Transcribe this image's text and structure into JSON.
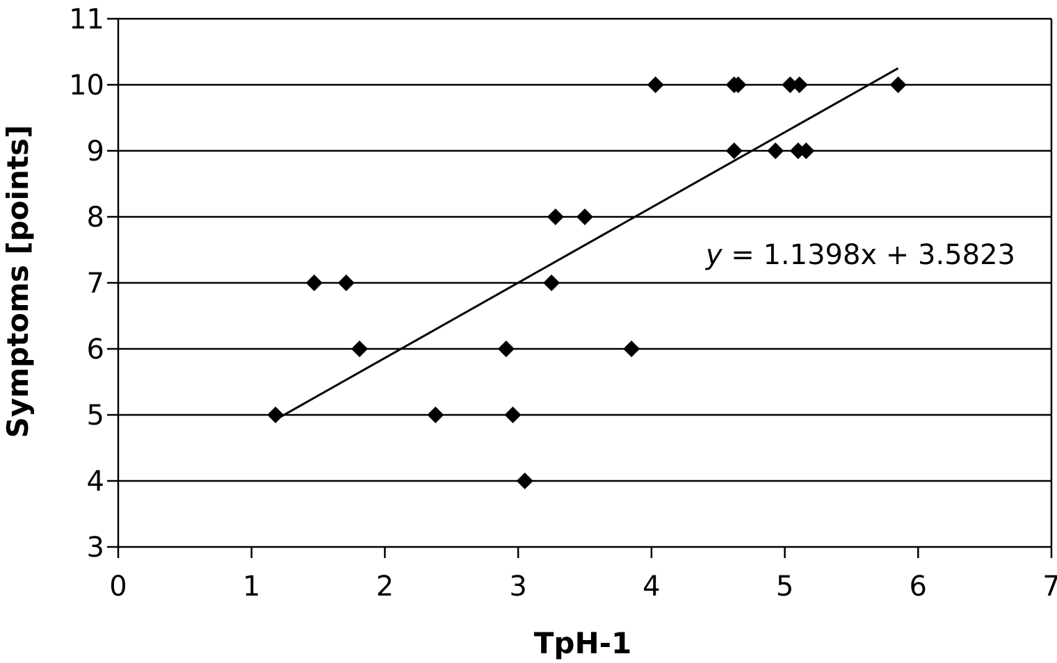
{
  "chart_data": {
    "type": "scatter",
    "xlabel": "TpH-1",
    "ylabel": "Symptoms [points]",
    "xlim": [
      0,
      7
    ],
    "ylim": [
      3,
      11
    ],
    "x_ticks": [
      "0",
      "1",
      "2",
      "3",
      "4",
      "5",
      "6",
      "7"
    ],
    "y_ticks": [
      "3",
      "4",
      "5",
      "6",
      "7",
      "8",
      "9",
      "10",
      "11"
    ],
    "grid": "horizontal",
    "points": [
      {
        "x": 1.18,
        "y": 5
      },
      {
        "x": 1.47,
        "y": 7
      },
      {
        "x": 1.71,
        "y": 7
      },
      {
        "x": 1.81,
        "y": 6
      },
      {
        "x": 2.38,
        "y": 5
      },
      {
        "x": 2.91,
        "y": 6
      },
      {
        "x": 2.96,
        "y": 5
      },
      {
        "x": 3.05,
        "y": 4
      },
      {
        "x": 3.25,
        "y": 7
      },
      {
        "x": 3.28,
        "y": 8
      },
      {
        "x": 3.5,
        "y": 8
      },
      {
        "x": 3.85,
        "y": 6
      },
      {
        "x": 4.03,
        "y": 10
      },
      {
        "x": 4.62,
        "y": 9
      },
      {
        "x": 4.62,
        "y": 10
      },
      {
        "x": 4.65,
        "y": 10
      },
      {
        "x": 4.93,
        "y": 9
      },
      {
        "x": 5.04,
        "y": 10
      },
      {
        "x": 5.1,
        "y": 9
      },
      {
        "x": 5.11,
        "y": 10
      },
      {
        "x": 5.16,
        "y": 9
      },
      {
        "x": 5.85,
        "y": 10
      }
    ],
    "trendline": {
      "equation_var": "y",
      "equation_rest": " = 1.1398x + 3.5823",
      "slope": 1.1398,
      "intercept": 3.5823,
      "x_range": [
        1.22,
        5.85
      ]
    },
    "marker": "diamond",
    "color": "#000000"
  }
}
